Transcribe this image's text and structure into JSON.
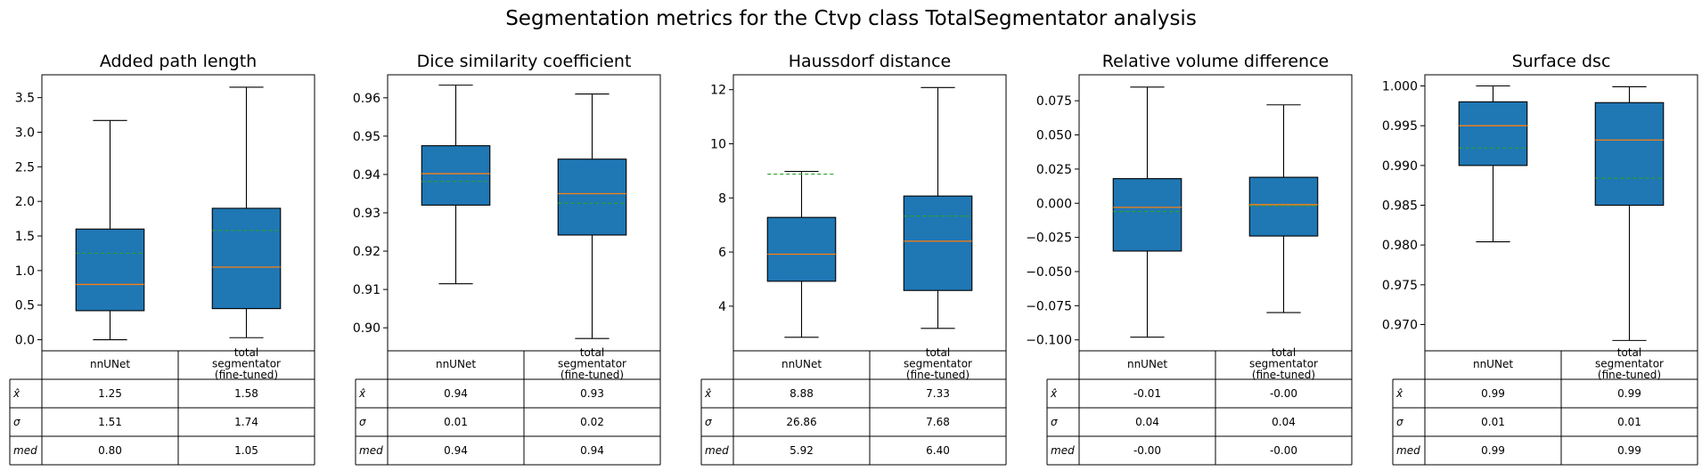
{
  "suptitle": "Segmentation metrics for the Ctvp class TotalSegmentator analysis",
  "colors": {
    "box": "#1f77b4",
    "median": "#ff7f0e",
    "mean": "#2ca02c",
    "ink": "#000000"
  },
  "row_labels": [
    "x̂",
    "σ",
    "med"
  ],
  "chart_data": [
    {
      "type": "box",
      "title": "Added path length",
      "categories": [
        "nnUNet",
        "total segmentator (fine-tuned)"
      ],
      "ylim": [
        -0.16,
        3.83
      ],
      "yticks": [
        0.0,
        0.5,
        1.0,
        1.5,
        2.0,
        2.5,
        3.0,
        3.5
      ],
      "ytick_labels": [
        "0.0",
        "0.5",
        "1.0",
        "1.5",
        "2.0",
        "2.5",
        "3.0",
        "3.5"
      ],
      "boxes": [
        {
          "whislo": 0.0,
          "q1": 0.42,
          "med": 0.8,
          "q3": 1.6,
          "whishi": 3.17,
          "mean": 1.25
        },
        {
          "whislo": 0.03,
          "q1": 0.45,
          "med": 1.05,
          "q3": 1.9,
          "whishi": 3.65,
          "mean": 1.58
        }
      ],
      "table": [
        [
          "1.25",
          "1.58"
        ],
        [
          "1.51",
          "1.74"
        ],
        [
          "0.80",
          "1.05"
        ]
      ]
    },
    {
      "type": "box",
      "title": "Dice similarity coefficient",
      "categories": [
        "nnUNet",
        "total segmentator (fine-tuned)"
      ],
      "ylim": [
        0.894,
        0.966
      ],
      "yticks": [
        0.9,
        0.91,
        0.92,
        0.93,
        0.94,
        0.95,
        0.96
      ],
      "ytick_labels": [
        "0.90",
        "0.91",
        "0.92",
        "0.93",
        "0.94",
        "0.95",
        "0.96"
      ],
      "boxes": [
        {
          "whislo": 0.9115,
          "q1": 0.932,
          "med": 0.9402,
          "q3": 0.9475,
          "whishi": 0.9633,
          "mean": 0.9382
        },
        {
          "whislo": 0.8972,
          "q1": 0.9242,
          "med": 0.935,
          "q3": 0.944,
          "whishi": 0.961,
          "mean": 0.9325
        }
      ],
      "table": [
        [
          "0.94",
          "0.93"
        ],
        [
          "0.01",
          "0.02"
        ],
        [
          "0.94",
          "0.94"
        ]
      ]
    },
    {
      "type": "box",
      "title": "Haussdorf distance",
      "categories": [
        "nnUNet",
        "total segmentator (fine-tuned)"
      ],
      "ylim": [
        2.35,
        12.55
      ],
      "yticks": [
        4,
        6,
        8,
        10,
        12
      ],
      "ytick_labels": [
        "4",
        "6",
        "8",
        "10",
        "12"
      ],
      "boxes": [
        {
          "whislo": 2.85,
          "q1": 4.92,
          "med": 5.92,
          "q3": 7.28,
          "whishi": 8.98,
          "mean": 8.88
        },
        {
          "whislo": 3.18,
          "q1": 4.58,
          "med": 6.4,
          "q3": 8.07,
          "whishi": 12.08,
          "mean": 7.33
        }
      ],
      "table": [
        [
          "8.88",
          "7.33"
        ],
        [
          "26.86",
          "7.68"
        ],
        [
          "5.92",
          "6.40"
        ]
      ]
    },
    {
      "type": "box",
      "title": "Relative volume difference",
      "categories": [
        "nnUNet",
        "total segmentator (fine-tuned)"
      ],
      "ylim": [
        -0.108,
        0.094
      ],
      "yticks": [
        -0.1,
        -0.075,
        -0.05,
        -0.025,
        0.0,
        0.025,
        0.05,
        0.075
      ],
      "ytick_labels": [
        "−0.100",
        "−0.075",
        "−0.050",
        "−0.025",
        "0.000",
        "0.025",
        "0.050",
        "0.075"
      ],
      "boxes": [
        {
          "whislo": -0.098,
          "q1": -0.035,
          "med": -0.003,
          "q3": 0.018,
          "whishi": 0.085,
          "mean": -0.006
        },
        {
          "whislo": -0.08,
          "q1": -0.024,
          "med": -0.001,
          "q3": 0.019,
          "whishi": 0.072,
          "mean": -0.002
        }
      ],
      "table": [
        [
          "-0.01",
          "-0.00"
        ],
        [
          "0.04",
          "0.04"
        ],
        [
          "-0.00",
          "-0.00"
        ]
      ]
    },
    {
      "type": "box",
      "title": "Surface dsc",
      "categories": [
        "nnUNet",
        "total segmentator (fine-tuned)"
      ],
      "ylim": [
        0.9667,
        1.0014
      ],
      "yticks": [
        0.97,
        0.975,
        0.98,
        0.985,
        0.99,
        0.995,
        1.0
      ],
      "ytick_labels": [
        "0.970",
        "0.975",
        "0.980",
        "0.985",
        "0.990",
        "0.995",
        "1.000"
      ],
      "boxes": [
        {
          "whislo": 0.9804,
          "q1": 0.99,
          "med": 0.995,
          "q3": 0.998,
          "whishi": 1.0,
          "mean": 0.9922
        },
        {
          "whislo": 0.968,
          "q1": 0.985,
          "med": 0.9932,
          "q3": 0.9979,
          "whishi": 0.9999,
          "mean": 0.9884
        }
      ],
      "table": [
        [
          "0.99",
          "0.99"
        ],
        [
          "0.01",
          "0.01"
        ],
        [
          "0.99",
          "0.99"
        ]
      ]
    }
  ]
}
